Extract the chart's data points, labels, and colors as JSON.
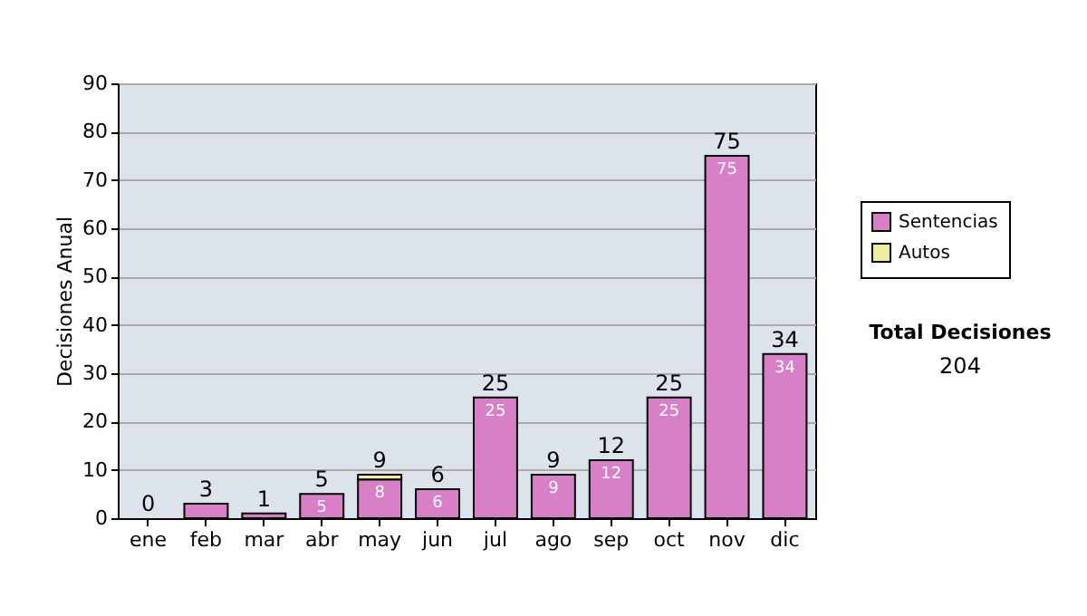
{
  "chart_data": {
    "type": "bar",
    "stacked": true,
    "ylabel": "Decisiones Anual",
    "categories": [
      "ene",
      "feb",
      "mar",
      "abr",
      "may",
      "jun",
      "jul",
      "ago",
      "sep",
      "oct",
      "nov",
      "dic"
    ],
    "series": [
      {
        "name": "Sentencias",
        "color": "#d77fc7",
        "values": [
          0,
          3,
          1,
          5,
          8,
          6,
          25,
          9,
          12,
          25,
          75,
          34
        ],
        "value_labels": [
          null,
          null,
          null,
          "5",
          "8",
          "6",
          "25",
          "9",
          "12",
          "25",
          "75",
          "34"
        ]
      },
      {
        "name": "Autos",
        "color": "#eeeea0",
        "values": [
          0,
          0,
          0,
          0,
          1,
          0,
          0,
          0,
          0,
          0,
          0,
          0
        ]
      }
    ],
    "totals": [
      "0",
      "3",
      "1",
      "5",
      "9",
      "6",
      "25",
      "9",
      "12",
      "25",
      "75",
      "34"
    ],
    "ylim": [
      0,
      90
    ],
    "yticks": [
      0,
      10,
      20,
      30,
      40,
      50,
      60,
      70,
      80,
      90
    ],
    "grid": "y",
    "legend": "right",
    "annotations": [
      "Total Decisiones",
      "204"
    ]
  }
}
